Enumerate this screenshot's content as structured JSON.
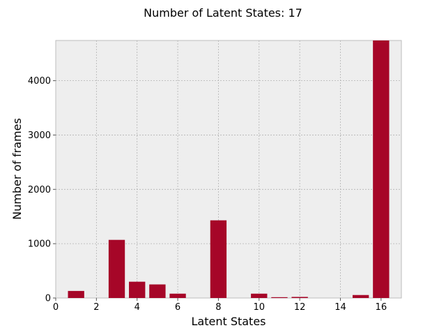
{
  "chart_data": {
    "type": "bar",
    "title": "Number of Latent States: 17",
    "xlabel": "Latent States",
    "ylabel": "Number of frames",
    "x": [
      0,
      1,
      2,
      3,
      4,
      5,
      6,
      7,
      8,
      9,
      10,
      11,
      12,
      13,
      14,
      15,
      16
    ],
    "values": [
      0,
      130,
      0,
      1070,
      300,
      250,
      80,
      0,
      1430,
      0,
      80,
      15,
      20,
      0,
      0,
      55,
      4740
    ],
    "xlim": [
      0,
      17
    ],
    "ylim": [
      0,
      4740
    ],
    "xticks": [
      "0",
      "2",
      "4",
      "6",
      "8",
      "10",
      "12",
      "14",
      "16"
    ],
    "yticks": [
      "0",
      "1000",
      "2000",
      "3000",
      "4000"
    ],
    "bar_color": "#A60628",
    "background_color": "#EEEEEE",
    "grid": true,
    "legend": "none"
  }
}
